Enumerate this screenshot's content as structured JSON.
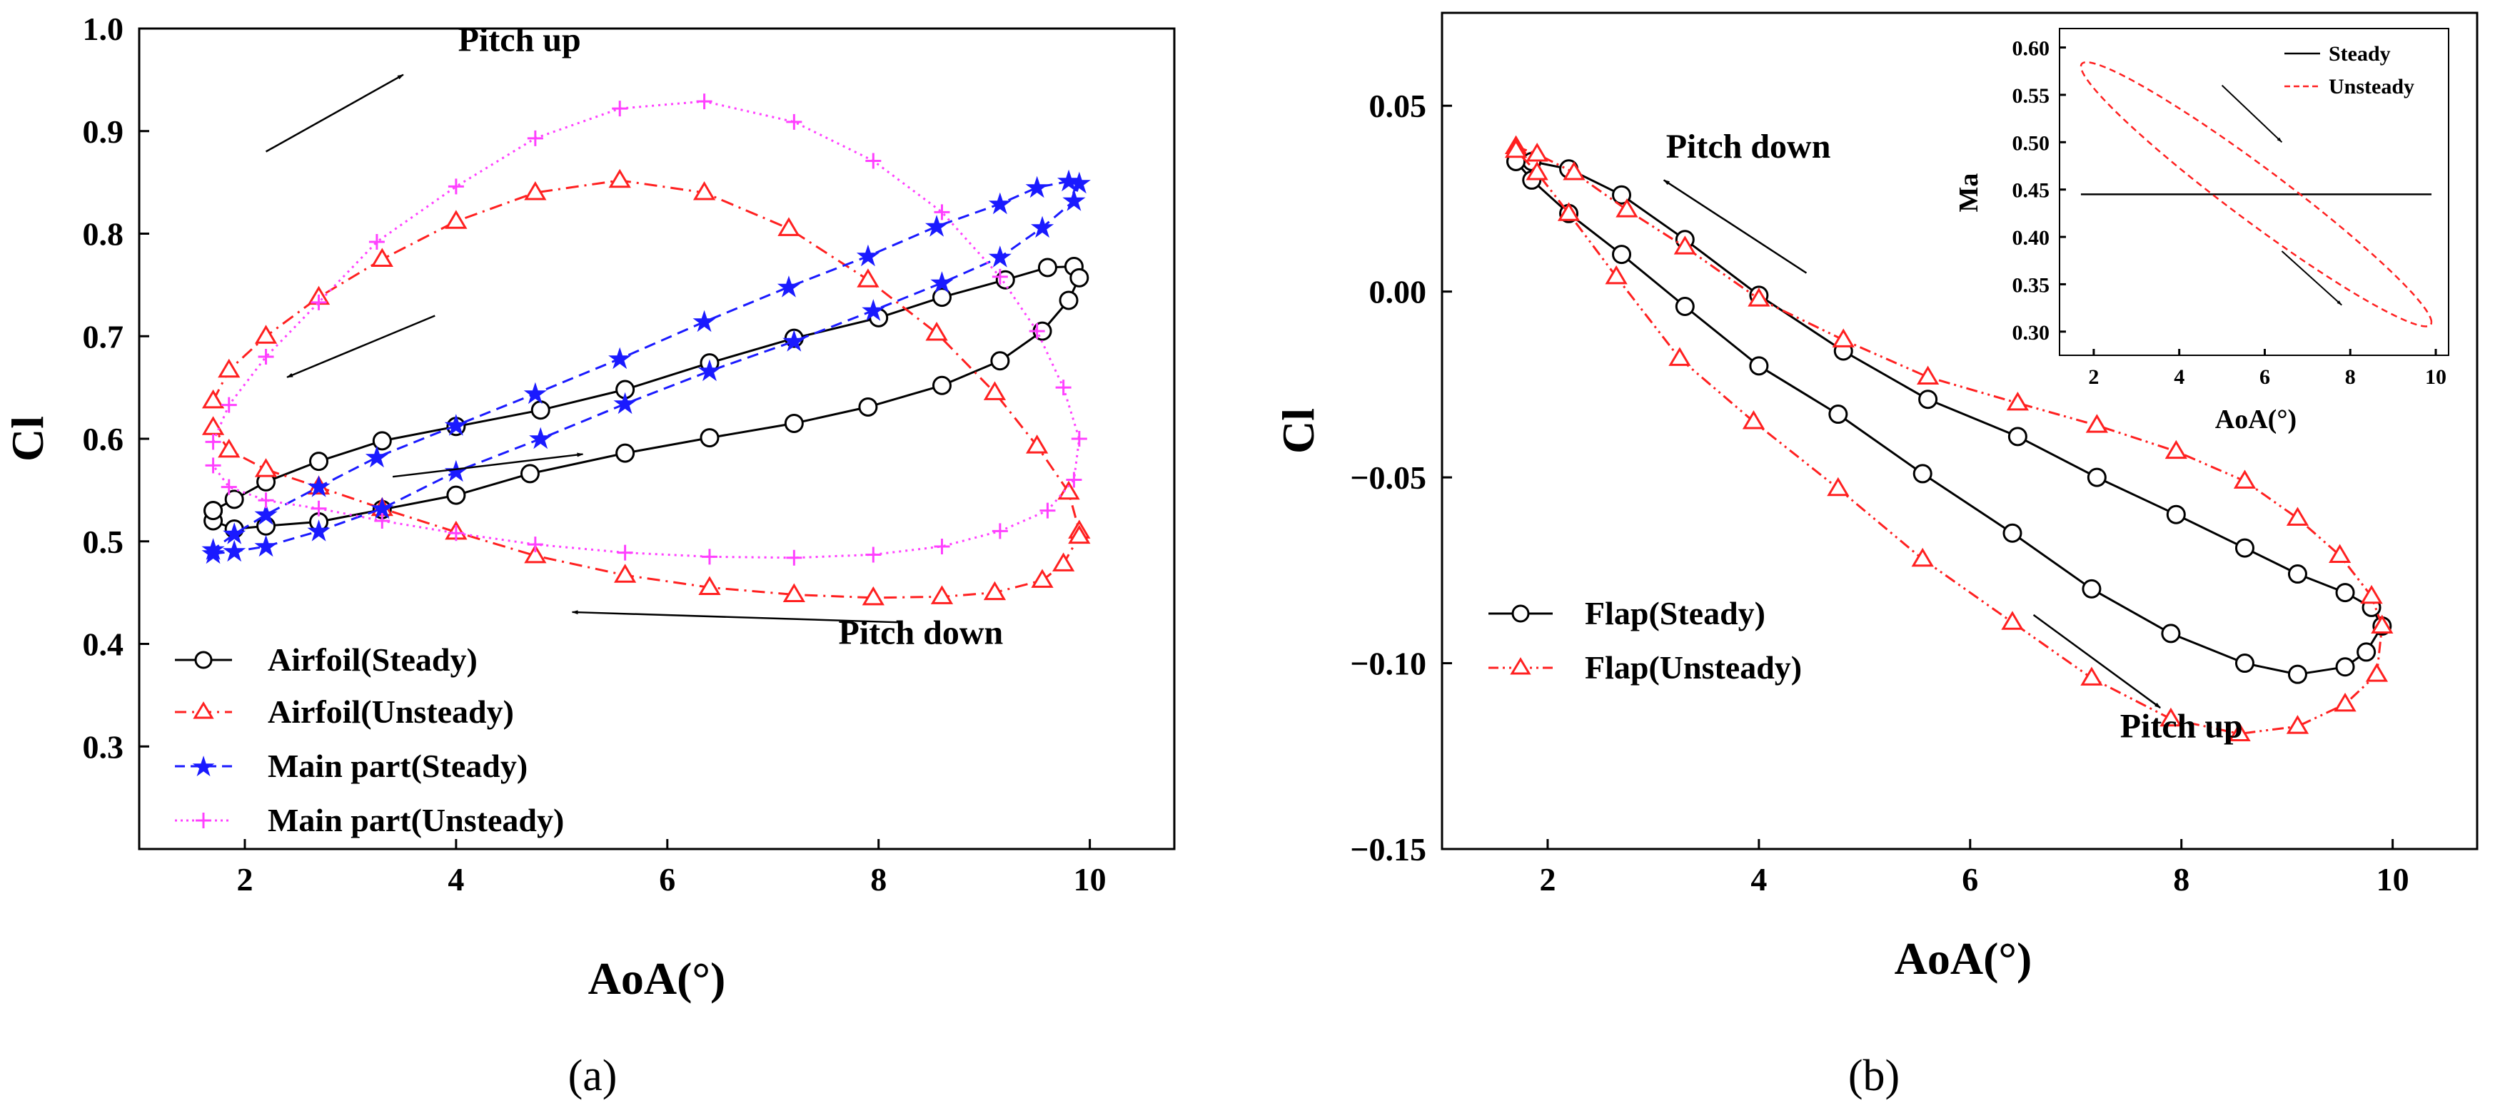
{
  "colors": {
    "axis": "#000000",
    "steady": "#000000",
    "unsteady": "#ff2020",
    "main_steady": "#1a1aff",
    "main_unsteady": "#ff40ff"
  },
  "chart_data": [
    {
      "id": "a",
      "panel_label": "(a)",
      "type": "line",
      "xlabel": "AoA(°)",
      "ylabel": "Cl",
      "xlim": [
        1.0,
        10.8
      ],
      "ylim": [
        0.2,
        1.0
      ],
      "xticks": [
        2,
        4,
        6,
        8,
        10
      ],
      "xtick_labels": [
        "2",
        "4",
        "6",
        "8",
        "10"
      ],
      "yticks": [
        0.3,
        0.4,
        0.5,
        0.6,
        0.7,
        0.8,
        0.9,
        1.0
      ],
      "ytick_labels": [
        "0.3",
        "0.4",
        "0.5",
        "0.6",
        "0.7",
        "0.8",
        "0.9",
        "1.0"
      ],
      "legend_position": "bottom-left",
      "series": [
        {
          "name": "Airfoil(Steady)",
          "color": "#000000",
          "dash": "solid",
          "marker": "circle",
          "x": [
            1.7,
            1.9,
            2.2,
            2.7,
            3.3,
            4.0,
            4.8,
            5.6,
            6.4,
            7.2,
            8.0,
            8.6,
            9.2,
            9.6,
            9.85,
            9.9,
            9.8,
            9.55,
            9.15,
            8.6,
            7.9,
            7.2,
            6.4,
            5.6,
            4.7,
            4.0,
            3.3,
            2.7,
            2.2,
            1.9,
            1.7,
            1.7
          ],
          "y": [
            0.53,
            0.541,
            0.558,
            0.578,
            0.598,
            0.612,
            0.628,
            0.648,
            0.674,
            0.698,
            0.718,
            0.738,
            0.755,
            0.767,
            0.768,
            0.757,
            0.735,
            0.705,
            0.676,
            0.652,
            0.631,
            0.615,
            0.601,
            0.586,
            0.566,
            0.545,
            0.531,
            0.519,
            0.515,
            0.512,
            0.52,
            0.53
          ]
        },
        {
          "name": "Airfoil(Unsteady)",
          "color": "#ff2020",
          "dash": "dashdot",
          "marker": "triangle",
          "x": [
            1.7,
            1.85,
            2.2,
            2.7,
            3.3,
            4.0,
            4.75,
            5.55,
            6.35,
            7.15,
            7.9,
            8.55,
            9.1,
            9.5,
            9.8,
            9.9,
            9.9,
            9.75,
            9.55,
            9.1,
            8.6,
            7.95,
            7.2,
            6.4,
            5.6,
            4.75,
            4.0,
            3.3,
            2.7,
            2.2,
            1.85,
            1.7
          ],
          "y": [
            0.637,
            0.667,
            0.7,
            0.738,
            0.775,
            0.812,
            0.84,
            0.852,
            0.84,
            0.805,
            0.755,
            0.703,
            0.645,
            0.593,
            0.548,
            0.51,
            0.505,
            0.478,
            0.462,
            0.45,
            0.446,
            0.445,
            0.448,
            0.455,
            0.467,
            0.486,
            0.509,
            0.532,
            0.553,
            0.57,
            0.589,
            0.611
          ]
        },
        {
          "name": "Main part(Steady)",
          "color": "#1a1aff",
          "dash": "dashed",
          "marker": "star",
          "x": [
            1.7,
            1.9,
            2.2,
            2.7,
            3.3,
            4.0,
            4.8,
            5.6,
            6.4,
            7.2,
            7.95,
            8.6,
            9.15,
            9.55,
            9.85,
            9.9,
            9.8,
            9.5,
            9.15,
            8.55,
            7.9,
            7.15,
            6.35,
            5.55,
            4.75,
            4.0,
            3.25,
            2.7,
            2.2,
            1.9,
            1.7
          ],
          "y": [
            0.488,
            0.49,
            0.495,
            0.51,
            0.532,
            0.568,
            0.6,
            0.634,
            0.666,
            0.695,
            0.725,
            0.752,
            0.777,
            0.806,
            0.832,
            0.849,
            0.851,
            0.845,
            0.829,
            0.807,
            0.778,
            0.748,
            0.714,
            0.678,
            0.644,
            0.613,
            0.582,
            0.553,
            0.526,
            0.507,
            0.492
          ]
        },
        {
          "name": "Main part(Unsteady)",
          "color": "#ff40ff",
          "dash": "dotted",
          "marker": "plus",
          "x": [
            1.7,
            1.85,
            2.2,
            2.7,
            3.25,
            4.0,
            4.75,
            5.55,
            6.35,
            7.2,
            7.95,
            8.6,
            9.15,
            9.5,
            9.75,
            9.9,
            9.85,
            9.6,
            9.15,
            8.6,
            7.95,
            7.2,
            6.4,
            5.6,
            4.75,
            4.0,
            3.3,
            2.7,
            2.2,
            1.85,
            1.7
          ],
          "y": [
            0.597,
            0.633,
            0.68,
            0.733,
            0.792,
            0.846,
            0.893,
            0.922,
            0.929,
            0.909,
            0.871,
            0.821,
            0.758,
            0.705,
            0.65,
            0.6,
            0.56,
            0.53,
            0.51,
            0.495,
            0.487,
            0.484,
            0.485,
            0.489,
            0.497,
            0.508,
            0.52,
            0.532,
            0.54,
            0.553,
            0.574
          ]
        }
      ],
      "annotations": [
        {
          "text": "Pitch up",
          "x": 4.6,
          "y": 0.978,
          "arrow": [
            2.2,
            0.88,
            3.5,
            0.955
          ]
        },
        {
          "text": "Pitch down",
          "x": 8.4,
          "y": 0.4,
          "arrow": [
            8.2,
            0.421,
            5.1,
            0.431
          ]
        },
        {
          "text": "",
          "arrow": [
            3.8,
            0.72,
            2.4,
            0.66
          ]
        },
        {
          "text": "",
          "arrow": [
            3.4,
            0.563,
            5.2,
            0.585
          ]
        }
      ]
    },
    {
      "id": "b",
      "panel_label": "(b)",
      "type": "line",
      "xlabel": "AoA(°)",
      "ylabel": "Cl",
      "xlim": [
        1.0,
        10.8
      ],
      "ylim": [
        -0.15,
        0.075
      ],
      "xticks": [
        2,
        4,
        6,
        8,
        10
      ],
      "xtick_labels": [
        "2",
        "4",
        "6",
        "8",
        "10"
      ],
      "yticks": [
        -0.15,
        -0.1,
        -0.05,
        0.0,
        0.05
      ],
      "ytick_labels": [
        "−0.15",
        "−0.10",
        "−0.05",
        "0.00",
        "0.05"
      ],
      "legend_position": "bottom-left",
      "series": [
        {
          "name": "Flap(Steady)",
          "color": "#000000",
          "dash": "solid",
          "marker": "circle",
          "x": [
            1.7,
            1.85,
            2.2,
            2.7,
            3.3,
            4.0,
            4.8,
            5.6,
            6.45,
            7.2,
            7.95,
            8.6,
            9.1,
            9.55,
            9.8,
            9.9,
            9.75,
            9.55,
            9.1,
            8.6,
            7.9,
            7.15,
            6.4,
            5.55,
            4.75,
            4.0,
            3.3,
            2.7,
            2.2,
            1.85,
            1.7
          ],
          "y": [
            0.035,
            0.035,
            0.033,
            0.026,
            0.014,
            -0.001,
            -0.016,
            -0.029,
            -0.039,
            -0.05,
            -0.06,
            -0.069,
            -0.076,
            -0.081,
            -0.085,
            -0.09,
            -0.097,
            -0.101,
            -0.103,
            -0.1,
            -0.092,
            -0.08,
            -0.065,
            -0.049,
            -0.033,
            -0.02,
            -0.004,
            0.01,
            0.021,
            0.03,
            0.035
          ]
        },
        {
          "name": "Flap(Unsteady)",
          "color": "#ff2020",
          "dash": "dashdotdot",
          "marker": "triangle",
          "x": [
            1.7,
            1.9,
            2.25,
            2.75,
            3.3,
            4.0,
            4.8,
            5.6,
            6.45,
            7.2,
            7.95,
            8.6,
            9.1,
            9.5,
            9.8,
            9.9,
            9.85,
            9.55,
            9.1,
            8.55,
            7.9,
            7.15,
            6.4,
            5.55,
            4.75,
            3.95,
            3.25,
            2.65,
            2.2,
            1.9,
            1.7
          ],
          "y": [
            0.039,
            0.037,
            0.032,
            0.022,
            0.012,
            -0.002,
            -0.013,
            -0.023,
            -0.03,
            -0.036,
            -0.043,
            -0.051,
            -0.061,
            -0.071,
            -0.082,
            -0.09,
            -0.103,
            -0.111,
            -0.117,
            -0.119,
            -0.115,
            -0.104,
            -0.089,
            -0.072,
            -0.053,
            -0.035,
            -0.018,
            0.004,
            0.021,
            0.032,
            0.038
          ]
        }
      ],
      "annotations": [
        {
          "text": "Pitch down",
          "x": 3.9,
          "y": 0.036,
          "arrow": [
            4.45,
            0.005,
            3.1,
            0.03
          ]
        },
        {
          "text": "Pitch up",
          "x": 8.0,
          "y": -0.12,
          "arrow": [
            6.6,
            -0.087,
            7.8,
            -0.112
          ]
        }
      ],
      "inset": {
        "type": "line",
        "xlabel": "AoA(°)",
        "ylabel": "Ma",
        "xlim": [
          1.2,
          10.3
        ],
        "ylim": [
          0.275,
          0.62
        ],
        "xticks": [
          2,
          4,
          6,
          8,
          10
        ],
        "xtick_labels": [
          "2",
          "4",
          "6",
          "8",
          "10"
        ],
        "yticks": [
          0.3,
          0.35,
          0.4,
          0.45,
          0.5,
          0.55,
          0.6
        ],
        "ytick_labels": [
          "0.30",
          "0.35",
          "0.40",
          "0.45",
          "0.50",
          "0.55",
          "0.60"
        ],
        "legend_position": "top-right",
        "series": [
          {
            "name": "Steady",
            "color": "#000000",
            "dash": "solid",
            "x": [
              1.7,
              9.9
            ],
            "y": [
              0.445,
              0.445
            ]
          },
          {
            "name": "Unsteady",
            "color": "#ff2020",
            "dash": "dashed",
            "shape": "ellipse",
            "x_range": [
              1.7,
              9.9
            ],
            "y_range": [
              0.31,
              0.58
            ]
          }
        ],
        "arrows": [
          [
            5.0,
            0.56,
            6.4,
            0.5
          ],
          [
            6.4,
            0.385,
            7.8,
            0.328
          ]
        ]
      }
    }
  ]
}
